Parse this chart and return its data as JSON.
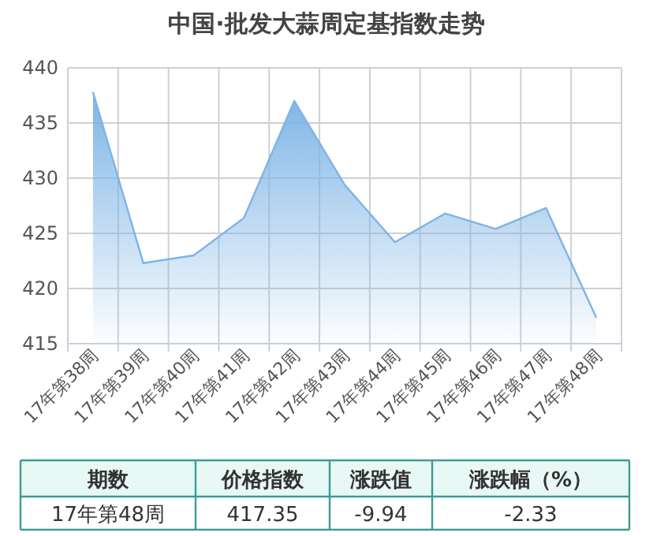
{
  "chart_data": {
    "type": "area",
    "title": "中国·批发大蒜周定基指数走势",
    "categories": [
      "17年第38周",
      "17年第39周",
      "17年第40周",
      "17年第41周",
      "17年第42周",
      "17年第43周",
      "17年第44周",
      "17年第45周",
      "17年第46周",
      "17年第47周",
      "17年第48周"
    ],
    "values": [
      437.8,
      422.3,
      423.0,
      426.4,
      437.0,
      429.4,
      424.2,
      426.8,
      425.4,
      427.3,
      417.35
    ],
    "color": "#7db4e6",
    "ylim": [
      415,
      440
    ],
    "yticks": [
      415,
      420,
      425,
      430,
      435,
      440
    ],
    "grid": true,
    "annotations": [
      "期数",
      "价格指数",
      "涨跌值",
      "涨跌幅（%）",
      "17年第48周",
      "417.35",
      "-9.94",
      "-2.33"
    ]
  }
}
